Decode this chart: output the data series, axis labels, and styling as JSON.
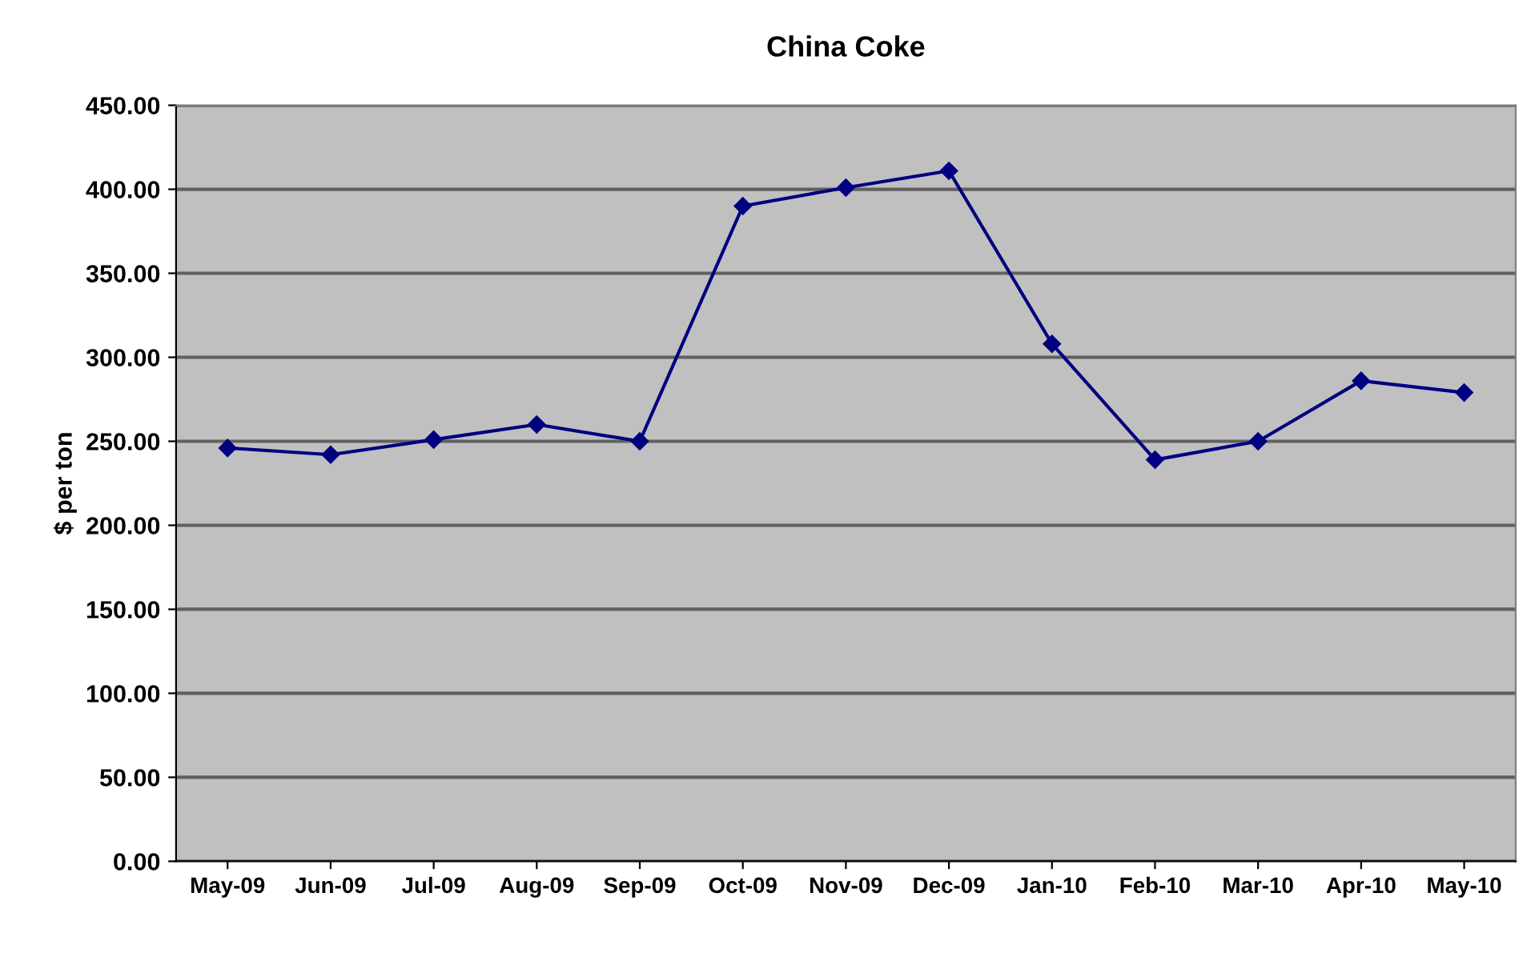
{
  "chart_data": {
    "type": "line",
    "title": "China Coke",
    "ylabel": "$ per ton",
    "categories": [
      "May-09",
      "Jun-09",
      "Jul-09",
      "Aug-09",
      "Sep-09",
      "Oct-09",
      "Nov-09",
      "Dec-09",
      "Jan-10",
      "Feb-10",
      "Mar-10",
      "Apr-10",
      "May-10"
    ],
    "series": [
      {
        "color": "#000080",
        "values": [
          246,
          242,
          251,
          260,
          250,
          390,
          401,
          411,
          308,
          239,
          250,
          286,
          279
        ]
      }
    ],
    "ylim": [
      0,
      450
    ],
    "yticks": [
      {
        "value": 0,
        "label": "0.00"
      },
      {
        "value": 50,
        "label": "50.00"
      },
      {
        "value": 100,
        "label": "100.00"
      },
      {
        "value": 150,
        "label": "150.00"
      },
      {
        "value": 200,
        "label": "200.00"
      },
      {
        "value": 250,
        "label": "250.00"
      },
      {
        "value": 300,
        "label": "300.00"
      },
      {
        "value": 350,
        "label": "350.00"
      },
      {
        "value": 400,
        "label": "400.00"
      },
      {
        "value": 450,
        "label": "450.00"
      }
    ],
    "grid": "y",
    "marker": "diamond",
    "line_style": "solid",
    "legend": false
  }
}
